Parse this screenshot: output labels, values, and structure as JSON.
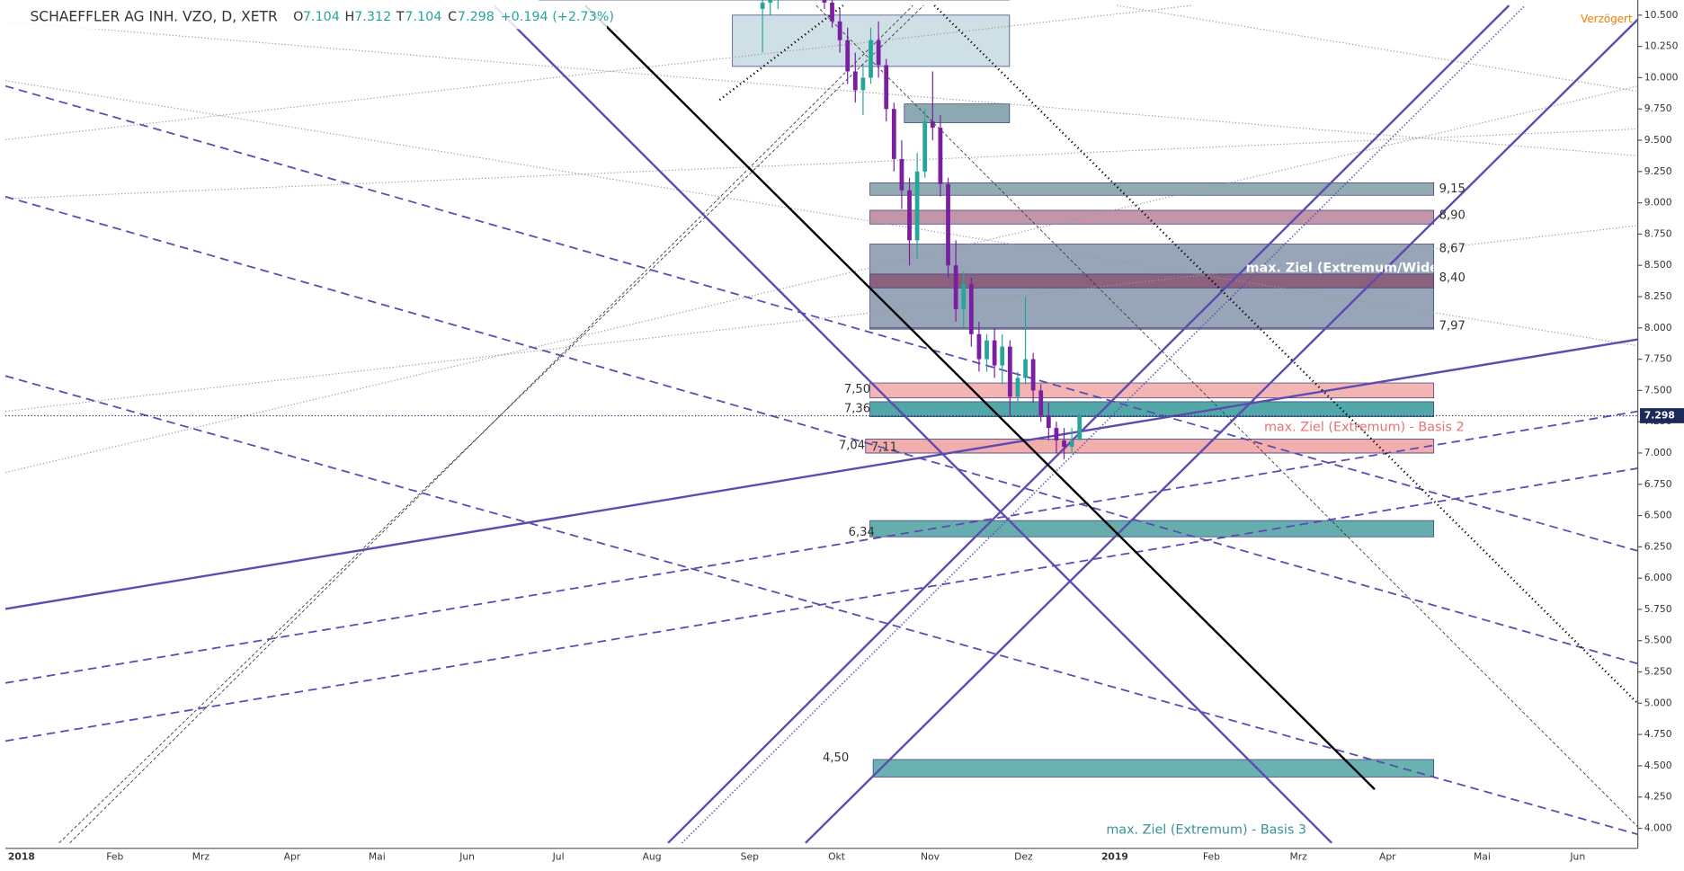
{
  "chart_data": {
    "type": "candlestick",
    "header": {
      "symbol": "SCHAEFFLER AG INH. VZO, D, XETR",
      "open_label": "O",
      "open": 7.104,
      "high_label": "H",
      "high": 7.312,
      "low_label": "T",
      "low": 7.104,
      "close_label": "C",
      "close": 7.298,
      "change": "+0.194 (+2.73%)"
    },
    "delay_note": "Verzögert",
    "x_axis_labels": [
      "2018",
      "Feb",
      "Mrz",
      "Apr",
      "Mai",
      "Jun",
      "Jul",
      "Aug",
      "Sep",
      "Okt",
      "Nov",
      "Dez",
      "2019",
      "Feb",
      "Mrz",
      "Apr",
      "Mai",
      "Jun"
    ],
    "categories": [
      null,
      null,
      null,
      null,
      null,
      null,
      null,
      null,
      null,
      null,
      null,
      null,
      null,
      null,
      null,
      null,
      null,
      null,
      null,
      null,
      null,
      null,
      null,
      null,
      null,
      null,
      null,
      null,
      null,
      null,
      null,
      null,
      null,
      null,
      null,
      null,
      null,
      null,
      null,
      null,
      null,
      null
    ],
    "open": [
      10.55,
      10.6,
      10.65,
      10.7,
      10.85,
      10.9,
      10.85,
      10.8,
      10.75,
      10.6,
      10.45,
      10.3,
      10.05,
      9.9,
      10.0,
      10.3,
      10.1,
      9.75,
      9.35,
      9.1,
      8.7,
      9.25,
      9.65,
      9.6,
      9.15,
      8.5,
      8.15,
      8.35,
      7.95,
      7.75,
      7.9,
      7.7,
      7.85,
      7.45,
      7.6,
      7.75,
      7.5,
      7.3,
      7.2,
      7.1,
      7.05,
      7.104
    ],
    "high": [
      10.7,
      10.75,
      10.8,
      10.95,
      11.0,
      11.05,
      10.95,
      10.9,
      10.85,
      10.7,
      10.55,
      10.4,
      10.2,
      10.1,
      10.4,
      10.45,
      10.15,
      9.8,
      9.5,
      9.2,
      9.4,
      9.75,
      10.05,
      9.7,
      9.2,
      8.7,
      8.45,
      8.4,
      8.05,
      7.95,
      8.0,
      7.95,
      7.9,
      7.65,
      8.25,
      7.8,
      7.55,
      7.4,
      7.25,
      7.2,
      7.2,
      7.312
    ],
    "low": [
      10.2,
      10.5,
      10.55,
      10.65,
      10.75,
      10.8,
      10.7,
      10.65,
      10.55,
      10.4,
      10.2,
      9.95,
      9.8,
      9.7,
      9.95,
      10.0,
      9.65,
      9.25,
      8.95,
      8.5,
      8.55,
      9.2,
      9.5,
      9.05,
      8.4,
      8.05,
      8.0,
      7.85,
      7.65,
      7.65,
      7.6,
      7.55,
      7.3,
      7.4,
      7.55,
      7.4,
      7.25,
      7.1,
      7.0,
      6.95,
      7.0,
      7.104
    ],
    "close": [
      10.6,
      10.65,
      10.7,
      10.85,
      10.9,
      10.85,
      10.8,
      10.75,
      10.6,
      10.45,
      10.3,
      10.05,
      9.9,
      10.0,
      10.3,
      10.1,
      9.75,
      9.35,
      9.1,
      8.7,
      9.25,
      9.65,
      9.6,
      9.15,
      8.5,
      8.15,
      8.35,
      7.95,
      7.75,
      7.9,
      7.7,
      7.85,
      7.45,
      7.6,
      7.75,
      7.5,
      7.3,
      7.2,
      7.1,
      7.05,
      7.1,
      7.298
    ],
    "up_color": "#26a69a",
    "down_color": "#7b1fa2",
    "last_price": 7.298,
    "ylim": [
      3.84,
      10.62
    ],
    "yticks": [
      {
        "value": 4,
        "label": "4.000"
      },
      {
        "value": 4.25,
        "label": "4.250"
      },
      {
        "value": 4.5,
        "label": "4.500"
      },
      {
        "value": 4.75,
        "label": "4.750"
      },
      {
        "value": 5,
        "label": "5.000"
      },
      {
        "value": 5.25,
        "label": "5.250"
      },
      {
        "value": 5.5,
        "label": "5.500"
      },
      {
        "value": 5.75,
        "label": "5.750"
      },
      {
        "value": 6,
        "label": "6.000"
      },
      {
        "value": 6.25,
        "label": "6.250"
      },
      {
        "value": 6.5,
        "label": "6.500"
      },
      {
        "value": 6.75,
        "label": "6.750"
      },
      {
        "value": 7,
        "label": "7.000"
      },
      {
        "value": 7.25,
        "label": "7.250"
      },
      {
        "value": 7.5,
        "label": "7.500"
      },
      {
        "value": 7.75,
        "label": "7.750"
      },
      {
        "value": 8,
        "label": "8.000"
      },
      {
        "value": 8.25,
        "label": "8.250"
      },
      {
        "value": 8.5,
        "label": "8.500"
      },
      {
        "value": 8.75,
        "label": "8.750"
      },
      {
        "value": 9,
        "label": "9.000"
      },
      {
        "value": 9.25,
        "label": "9.250"
      },
      {
        "value": 9.5,
        "label": "9.500"
      },
      {
        "value": 9.75,
        "label": "9.750"
      },
      {
        "value": 10,
        "label": "10.000"
      },
      {
        "value": 10.25,
        "label": "10.250"
      },
      {
        "value": 10.5,
        "label": "10.500"
      }
    ],
    "zones": [
      {
        "low": 10.62,
        "high": 10.7,
        "color": "#c9dde3"
      },
      {
        "low": 10.09,
        "high": 10.5,
        "color": "#c9dde3"
      },
      {
        "low": 9.64,
        "high": 9.79,
        "color": "#7f9fa8"
      },
      {
        "label": "9,15",
        "low": 9.06,
        "high": 9.16,
        "color": "#86a2ab"
      },
      {
        "label": "8,90",
        "low": 8.83,
        "high": 8.94,
        "color": "#bb8aa0"
      },
      {
        "label": "8,67",
        "low": 7.99,
        "high": 8.67,
        "color": "#8d9ab0"
      },
      {
        "label": "8,40",
        "low": 8.32,
        "high": 8.43,
        "color": "#8a5a78"
      },
      {
        "label": "7,97",
        "low": 7.99,
        "high": 8.0,
        "color": "#8d9ab0"
      },
      {
        "label": "7,50",
        "low": 7.44,
        "high": 7.56,
        "color": "#f2acac"
      },
      {
        "label": "7,36",
        "low": 7.29,
        "high": 7.41,
        "color": "#3f9ea0"
      },
      {
        "label": "7,04",
        "low": 7.0,
        "high": 7.11,
        "color": "#f2acac"
      },
      {
        "label": "7,11",
        "low": 7.0,
        "high": 7.11,
        "color": "#f2acac"
      },
      {
        "label": "6,34",
        "low": 6.33,
        "high": 6.46,
        "color": "#55a5a5"
      },
      {
        "label": "4,50",
        "low": 4.41,
        "high": 4.55,
        "color": "#5aa8a8"
      }
    ],
    "annotations": [
      "max. Ziel (Extremum/Widerst",
      "max. Ziel (Extremum) - Basis 2",
      "max. Ziel (Extremum) - Basis 3"
    ]
  }
}
